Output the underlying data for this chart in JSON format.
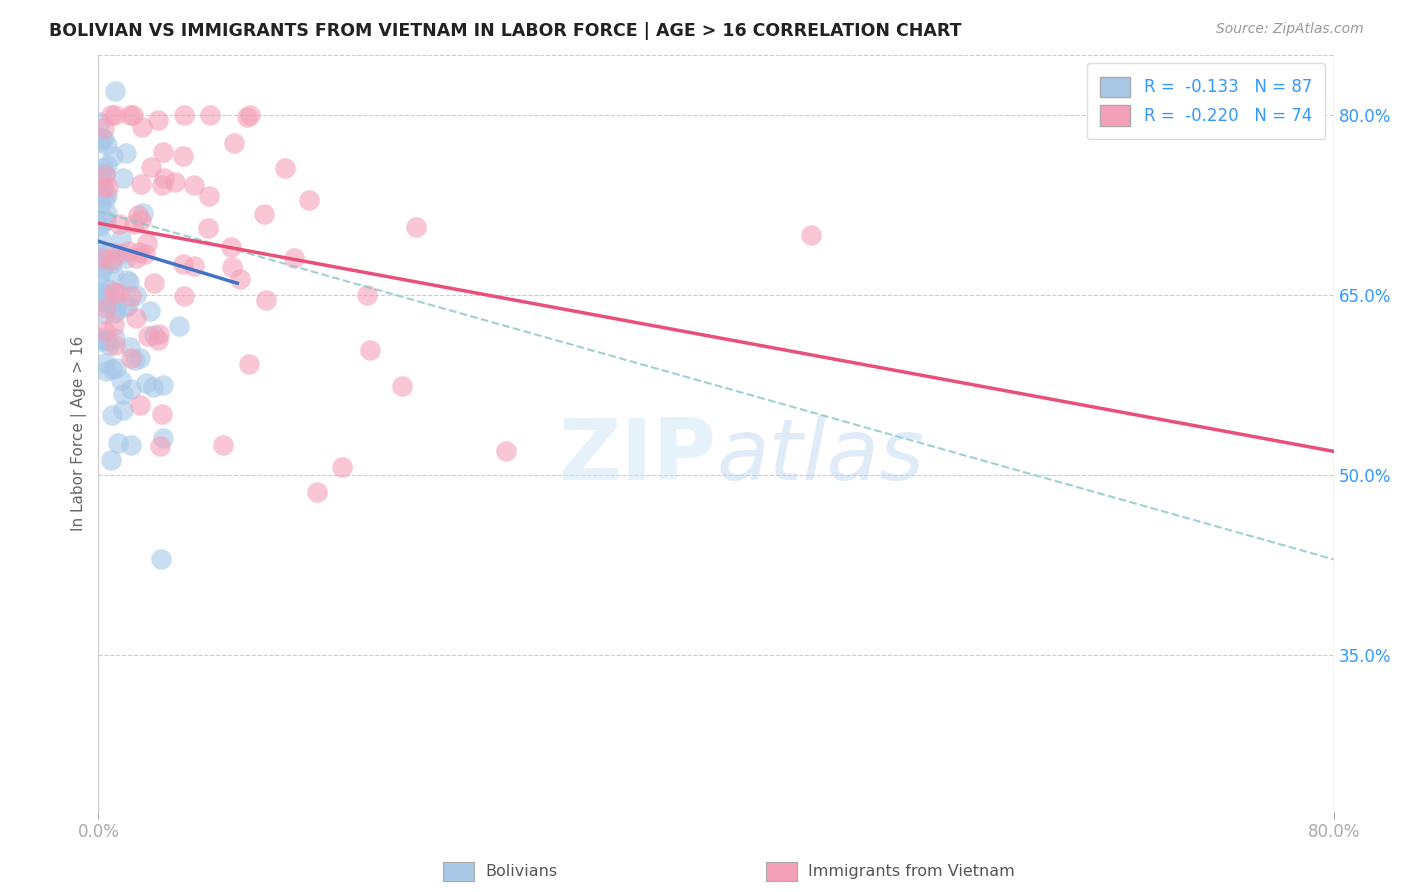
{
  "title": "BOLIVIAN VS IMMIGRANTS FROM VIETNAM IN LABOR FORCE | AGE > 16 CORRELATION CHART",
  "source": "Source: ZipAtlas.com",
  "ylabel": "In Labor Force | Age > 16",
  "xlim": [
    0.0,
    0.8
  ],
  "ylim": [
    0.22,
    0.85
  ],
  "y_ticks_right": [
    0.35,
    0.5,
    0.65,
    0.8
  ],
  "y_tick_labels_right": [
    "35.0%",
    "50.0%",
    "65.0%",
    "80.0%"
  ],
  "color_blue": "#A8C8E8",
  "color_pink": "#F4A0B8",
  "line_blue": "#4472C4",
  "line_pink": "#E8507A",
  "line_dashed_color": "#90C8C8",
  "blue_line_x0": 0.0,
  "blue_line_y0": 0.695,
  "blue_line_x1": 0.09,
  "blue_line_y1": 0.66,
  "pink_line_x0": 0.0,
  "pink_line_y0": 0.71,
  "pink_line_x1": 0.8,
  "pink_line_y1": 0.52,
  "dash_line_x0": 0.0,
  "dash_line_y0": 0.72,
  "dash_line_x1": 0.8,
  "dash_line_y1": 0.43
}
